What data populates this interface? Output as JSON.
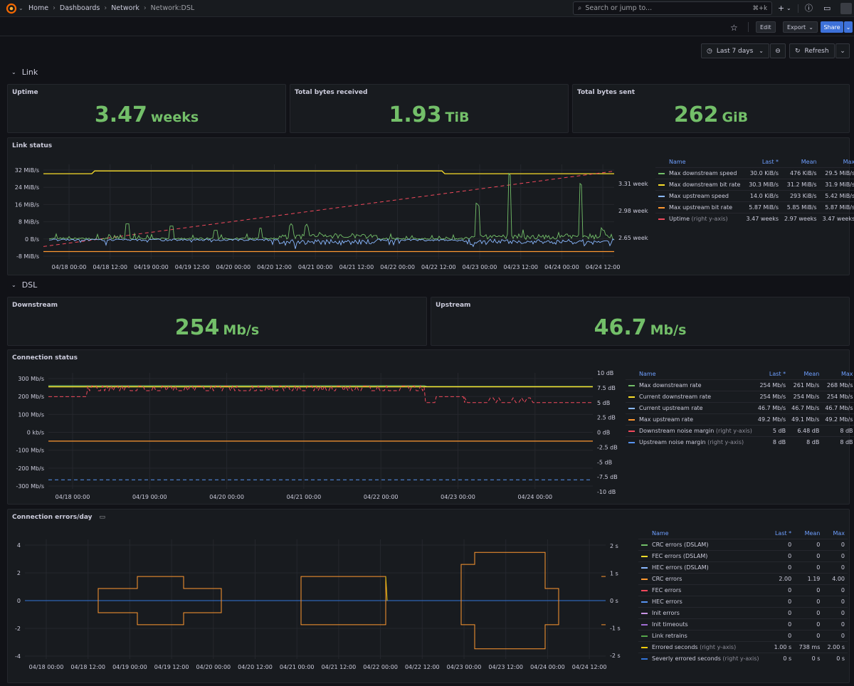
{
  "nav": {
    "breadcrumbs": [
      "Home",
      "Dashboards",
      "Network",
      "Network:DSL"
    ],
    "search_placeholder": "Search or jump to...",
    "search_shortcut": "⌘+k"
  },
  "toolbar": {
    "edit": "Edit",
    "export": "Export",
    "share": "Share"
  },
  "time": {
    "range": "Last 7 days",
    "refresh": "Refresh"
  },
  "rows": {
    "link": "Link",
    "dsl": "DSL"
  },
  "stats": {
    "uptime": {
      "title": "Uptime",
      "value": "3.47",
      "unit": "weeks"
    },
    "received": {
      "title": "Total bytes received",
      "value": "1.93",
      "unit": "TiB"
    },
    "sent": {
      "title": "Total bytes sent",
      "value": "262",
      "unit": "GiB"
    },
    "downstream": {
      "title": "Downstream",
      "value": "254",
      "unit": "Mb/s"
    },
    "upstream": {
      "title": "Upstream",
      "value": "46.7",
      "unit": "Mb/s"
    }
  },
  "colors": {
    "green": "#73bf69",
    "yellow": "#fade2a",
    "blue": "#8ab8ff",
    "orange": "#ff9830",
    "red": "#f2495c",
    "purple": "#ca95e5",
    "violet": "#a16dd4",
    "blue2": "#5794f2"
  },
  "chart_data": [
    {
      "type": "line",
      "title": "Link status",
      "x_ticks": [
        "04/18 00:00",
        "04/18 12:00",
        "04/19 00:00",
        "04/19 12:00",
        "04/20 00:00",
        "04/20 12:00",
        "04/21 00:00",
        "04/21 12:00",
        "04/22 00:00",
        "04/22 12:00",
        "04/23 00:00",
        "04/23 12:00",
        "04/24 00:00",
        "04/24 12:00"
      ],
      "y_ticks": [
        "32 MiB/s",
        "24 MiB/s",
        "16 MiB/s",
        "8 MiB/s",
        "0 B/s",
        "-8 MiB/s"
      ],
      "y2_ticks": [
        "3.31 weeks",
        "2.98 weeks",
        "2.65 weeks"
      ],
      "ylim": [
        -8,
        32
      ],
      "legend_headers": [
        "Name",
        "Last *",
        "Mean",
        "Max"
      ],
      "series": [
        {
          "name": "Max downstream speed",
          "color": "#73bf69",
          "dash": false,
          "last": "30.0 KiB/s",
          "mean": "476 KiB/s",
          "max": "29.5 MiB/s"
        },
        {
          "name": "Max downstream bit rate",
          "color": "#fade2a",
          "dash": false,
          "last": "30.3 MiB/s",
          "mean": "31.2 MiB/s",
          "max": "31.9 MiB/s"
        },
        {
          "name": "Max upstream speed",
          "color": "#8ab8ff",
          "dash": false,
          "last": "14.0 KiB/s",
          "mean": "293 KiB/s",
          "max": "5.42 MiB/s"
        },
        {
          "name": "Max upstream bit rate",
          "color": "#ff9830",
          "dash": false,
          "last": "5.87 MiB/s",
          "mean": "5.85 MiB/s",
          "max": "5.87 MiB/s"
        },
        {
          "name": "Uptime",
          "suffix": "(right y-axis)",
          "color": "#f2495c",
          "dash": true,
          "last": "3.47 weeks",
          "mean": "2.97 weeks",
          "max": "3.47 weeks"
        }
      ]
    },
    {
      "type": "line",
      "title": "Connection status",
      "x_ticks": [
        "04/18 00:00",
        "04/19 00:00",
        "04/20 00:00",
        "04/21 00:00",
        "04/22 00:00",
        "04/23 00:00",
        "04/24 00:00"
      ],
      "y_ticks": [
        "300 Mb/s",
        "200 Mb/s",
        "100 Mb/s",
        "0 kb/s",
        "-100 Mb/s",
        "-200 Mb/s",
        "-300 Mb/s"
      ],
      "y2_ticks": [
        "10 dB",
        "7.5 dB",
        "5 dB",
        "2.5 dB",
        "0 dB",
        "-2.5 dB",
        "-5 dB",
        "-7.5 dB",
        "-10 dB"
      ],
      "ylim": [
        -300,
        300
      ],
      "legend_headers": [
        "Name",
        "Last *",
        "Mean",
        "Max"
      ],
      "series": [
        {
          "name": "Max downstream rate",
          "color": "#73bf69",
          "dash": false,
          "last": "254 Mb/s",
          "mean": "261 Mb/s",
          "max": "268 Mb/s"
        },
        {
          "name": "Current downstream rate",
          "color": "#fade2a",
          "dash": false,
          "last": "254 Mb/s",
          "mean": "254 Mb/s",
          "max": "254 Mb/s"
        },
        {
          "name": "Current upstream rate",
          "color": "#8ab8ff",
          "dash": false,
          "last": "46.7 Mb/s",
          "mean": "46.7 Mb/s",
          "max": "46.7 Mb/s"
        },
        {
          "name": "Max upstream rate",
          "color": "#ff9830",
          "dash": false,
          "last": "49.2 Mb/s",
          "mean": "49.1 Mb/s",
          "max": "49.2 Mb/s"
        },
        {
          "name": "Downstream noise margin",
          "suffix": "(right y-axis)",
          "color": "#f2495c",
          "dash": true,
          "last": "5 dB",
          "mean": "6.48 dB",
          "max": "8 dB"
        },
        {
          "name": "Upstream noise margin",
          "suffix": "(right y-axis)",
          "color": "#5794f2",
          "dash": true,
          "last": "8 dB",
          "mean": "8 dB",
          "max": "8 dB"
        }
      ]
    },
    {
      "type": "line",
      "title": "Connection errors/day",
      "x_ticks": [
        "04/18 00:00",
        "04/18 12:00",
        "04/19 00:00",
        "04/19 12:00",
        "04/20 00:00",
        "04/20 12:00",
        "04/21 00:00",
        "04/21 12:00",
        "04/22 00:00",
        "04/22 12:00",
        "04/23 00:00",
        "04/23 12:00",
        "04/24 00:00",
        "04/24 12:00"
      ],
      "y_ticks": [
        "4",
        "2",
        "0",
        "-2",
        "-4"
      ],
      "y2_ticks": [
        "2 s",
        "1 s",
        "0 s",
        "-1 s",
        "-2 s"
      ],
      "ylim": [
        -4.6,
        4.6
      ],
      "legend_headers": [
        "Name",
        "Last *",
        "Mean",
        "Max"
      ],
      "series": [
        {
          "name": "CRC errors (DSLAM)",
          "color": "#73bf69",
          "dash": false,
          "last": "0",
          "mean": "0",
          "max": "0"
        },
        {
          "name": "FEC errors (DSLAM)",
          "color": "#fade2a",
          "dash": false,
          "last": "0",
          "mean": "0",
          "max": "0"
        },
        {
          "name": "HEC errors (DSLAM)",
          "color": "#8ab8ff",
          "dash": false,
          "last": "0",
          "mean": "0",
          "max": "0"
        },
        {
          "name": "CRC errors",
          "color": "#ff9830",
          "dash": false,
          "last": "2.00",
          "mean": "1.19",
          "max": "4.00"
        },
        {
          "name": "FEC errors",
          "color": "#f2495c",
          "dash": false,
          "last": "0",
          "mean": "0",
          "max": "0"
        },
        {
          "name": "HEC errors",
          "color": "#5794f2",
          "dash": false,
          "last": "0",
          "mean": "0",
          "max": "0"
        },
        {
          "name": "Init errors",
          "color": "#ca95e5",
          "dash": false,
          "last": "0",
          "mean": "0",
          "max": "0"
        },
        {
          "name": "Init timeouts",
          "color": "#a16dd4",
          "dash": false,
          "last": "0",
          "mean": "0",
          "max": "0"
        },
        {
          "name": "Link retrains",
          "color": "#56a64b",
          "dash": false,
          "last": "0",
          "mean": "0",
          "max": "0"
        },
        {
          "name": "Errored seconds",
          "suffix": "(right y-axis)",
          "color": "#f2cc0c",
          "dash": false,
          "last": "1.00 s",
          "mean": "738 ms",
          "max": "2.00 s"
        },
        {
          "name": "Severly errored seconds",
          "suffix": "(right y-axis)",
          "color": "#3274d9",
          "dash": false,
          "last": "0 s",
          "mean": "0 s",
          "max": "0 s"
        }
      ]
    }
  ]
}
